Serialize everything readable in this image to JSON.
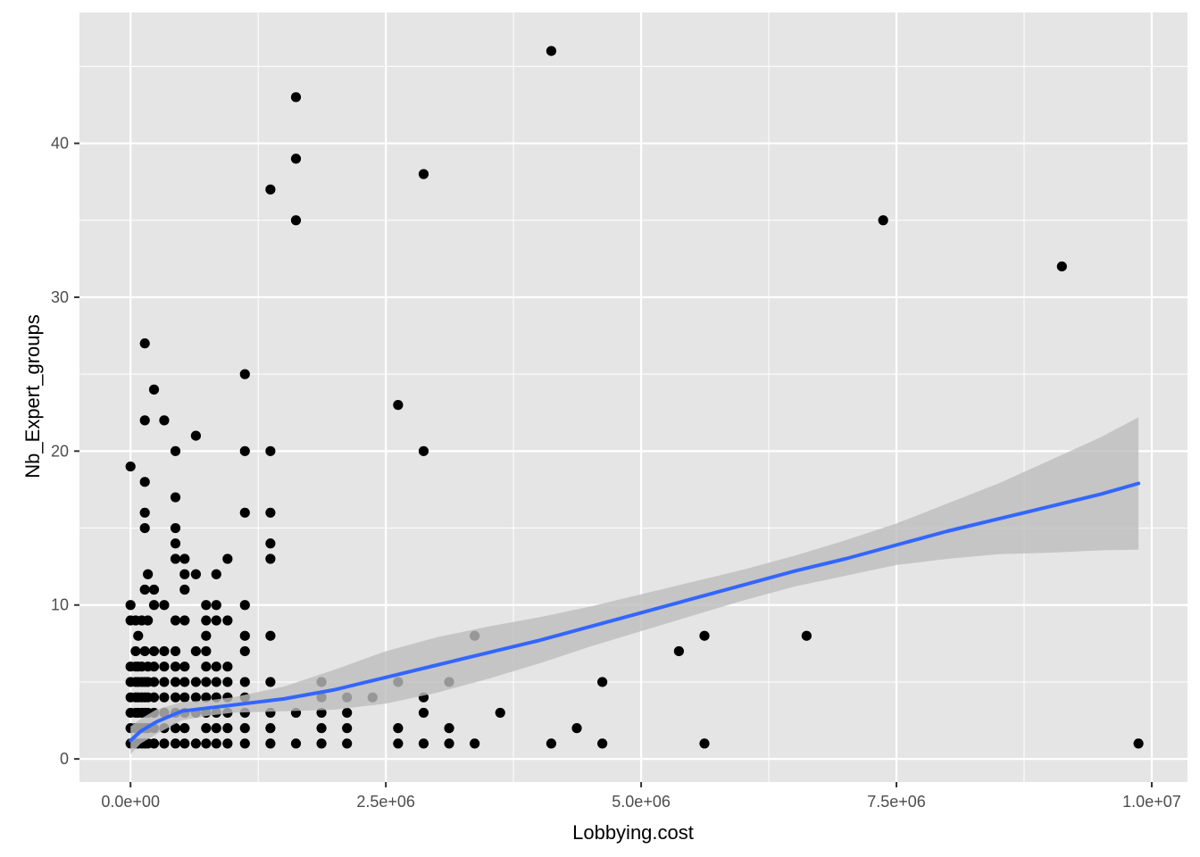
{
  "chart_data": {
    "type": "scatter",
    "xlabel": "Lobbying.cost",
    "ylabel": "Nb_Expert_groups",
    "xlim": [
      -500000,
      10350000
    ],
    "ylim": [
      -1.5,
      48.5
    ],
    "x_ticks": [
      0,
      2500000,
      5000000,
      7500000,
      10000000
    ],
    "x_tick_labels": [
      "0.0e+00",
      "2.5e+06",
      "5.0e+06",
      "7.5e+06",
      "1.0e+07"
    ],
    "y_ticks": [
      0,
      10,
      20,
      30,
      40
    ],
    "y_tick_labels": [
      "0",
      "10",
      "20",
      "30",
      "40"
    ],
    "grid": true,
    "colors": {
      "panel": "#e5e5e5",
      "grid": "#ffffff",
      "points": "#000000",
      "smooth_line": "#3366ff",
      "confidence_band": "#bdbdbd"
    },
    "points": [
      [
        0,
        1
      ],
      [
        0,
        2
      ],
      [
        0,
        3
      ],
      [
        0,
        4
      ],
      [
        0,
        5
      ],
      [
        0,
        6
      ],
      [
        0,
        9
      ],
      [
        0,
        10
      ],
      [
        0,
        19
      ],
      [
        50000,
        1
      ],
      [
        50000,
        2
      ],
      [
        50000,
        3
      ],
      [
        50000,
        4
      ],
      [
        50000,
        5
      ],
      [
        50000,
        6
      ],
      [
        50000,
        7
      ],
      [
        50000,
        9
      ],
      [
        75000,
        1
      ],
      [
        75000,
        2
      ],
      [
        75000,
        3
      ],
      [
        75000,
        4
      ],
      [
        75000,
        5
      ],
      [
        75000,
        6
      ],
      [
        75000,
        8
      ],
      [
        110000,
        1
      ],
      [
        110000,
        2
      ],
      [
        110000,
        3
      ],
      [
        110000,
        4
      ],
      [
        110000,
        5
      ],
      [
        110000,
        6
      ],
      [
        110000,
        9
      ],
      [
        140000,
        1
      ],
      [
        140000,
        2
      ],
      [
        140000,
        3
      ],
      [
        140000,
        4
      ],
      [
        140000,
        5
      ],
      [
        140000,
        7
      ],
      [
        140000,
        11
      ],
      [
        140000,
        15
      ],
      [
        140000,
        16
      ],
      [
        140000,
        18
      ],
      [
        140000,
        22
      ],
      [
        140000,
        27
      ],
      [
        170000,
        1
      ],
      [
        170000,
        2
      ],
      [
        170000,
        3
      ],
      [
        170000,
        4
      ],
      [
        170000,
        5
      ],
      [
        170000,
        6
      ],
      [
        170000,
        9
      ],
      [
        170000,
        12
      ],
      [
        230000,
        1
      ],
      [
        230000,
        2
      ],
      [
        230000,
        3
      ],
      [
        230000,
        4
      ],
      [
        230000,
        5
      ],
      [
        230000,
        6
      ],
      [
        230000,
        7
      ],
      [
        230000,
        10
      ],
      [
        230000,
        11
      ],
      [
        230000,
        24
      ],
      [
        330000,
        1
      ],
      [
        330000,
        2
      ],
      [
        330000,
        3
      ],
      [
        330000,
        4
      ],
      [
        330000,
        5
      ],
      [
        330000,
        6
      ],
      [
        330000,
        7
      ],
      [
        330000,
        10
      ],
      [
        330000,
        22
      ],
      [
        440000,
        1
      ],
      [
        440000,
        2
      ],
      [
        440000,
        3
      ],
      [
        440000,
        4
      ],
      [
        440000,
        5
      ],
      [
        440000,
        6
      ],
      [
        440000,
        7
      ],
      [
        440000,
        9
      ],
      [
        440000,
        13
      ],
      [
        440000,
        14
      ],
      [
        440000,
        15
      ],
      [
        440000,
        17
      ],
      [
        440000,
        20
      ],
      [
        530000,
        1
      ],
      [
        530000,
        2
      ],
      [
        530000,
        3
      ],
      [
        530000,
        4
      ],
      [
        530000,
        5
      ],
      [
        530000,
        6
      ],
      [
        530000,
        9
      ],
      [
        530000,
        11
      ],
      [
        530000,
        12
      ],
      [
        530000,
        13
      ],
      [
        640000,
        1
      ],
      [
        640000,
        3
      ],
      [
        640000,
        4
      ],
      [
        640000,
        5
      ],
      [
        640000,
        7
      ],
      [
        640000,
        12
      ],
      [
        640000,
        21
      ],
      [
        740000,
        1
      ],
      [
        740000,
        2
      ],
      [
        740000,
        3
      ],
      [
        740000,
        4
      ],
      [
        740000,
        5
      ],
      [
        740000,
        6
      ],
      [
        740000,
        7
      ],
      [
        740000,
        8
      ],
      [
        740000,
        9
      ],
      [
        740000,
        10
      ],
      [
        840000,
        1
      ],
      [
        840000,
        2
      ],
      [
        840000,
        3
      ],
      [
        840000,
        4
      ],
      [
        840000,
        5
      ],
      [
        840000,
        6
      ],
      [
        840000,
        9
      ],
      [
        840000,
        10
      ],
      [
        840000,
        12
      ],
      [
        950000,
        1
      ],
      [
        950000,
        2
      ],
      [
        950000,
        3
      ],
      [
        950000,
        4
      ],
      [
        950000,
        5
      ],
      [
        950000,
        6
      ],
      [
        950000,
        9
      ],
      [
        950000,
        13
      ],
      [
        1120000,
        1
      ],
      [
        1120000,
        2
      ],
      [
        1120000,
        3
      ],
      [
        1120000,
        4
      ],
      [
        1120000,
        5
      ],
      [
        1120000,
        7
      ],
      [
        1120000,
        8
      ],
      [
        1120000,
        10
      ],
      [
        1120000,
        16
      ],
      [
        1120000,
        20
      ],
      [
        1120000,
        25
      ],
      [
        1370000,
        1
      ],
      [
        1370000,
        2
      ],
      [
        1370000,
        3
      ],
      [
        1370000,
        5
      ],
      [
        1370000,
        8
      ],
      [
        1370000,
        13
      ],
      [
        1370000,
        14
      ],
      [
        1370000,
        16
      ],
      [
        1370000,
        20
      ],
      [
        1370000,
        37
      ],
      [
        1620000,
        1
      ],
      [
        1620000,
        3
      ],
      [
        1620000,
        35
      ],
      [
        1620000,
        39
      ],
      [
        1620000,
        43
      ],
      [
        1870000,
        1
      ],
      [
        1870000,
        2
      ],
      [
        1870000,
        3
      ],
      [
        1870000,
        4
      ],
      [
        1870000,
        5
      ],
      [
        2120000,
        1
      ],
      [
        2120000,
        2
      ],
      [
        2120000,
        3
      ],
      [
        2120000,
        4
      ],
      [
        2370000,
        4
      ],
      [
        2620000,
        1
      ],
      [
        2620000,
        2
      ],
      [
        2620000,
        5
      ],
      [
        2620000,
        23
      ],
      [
        2870000,
        1
      ],
      [
        2870000,
        3
      ],
      [
        2870000,
        4
      ],
      [
        2870000,
        20
      ],
      [
        2870000,
        38
      ],
      [
        3120000,
        1
      ],
      [
        3120000,
        2
      ],
      [
        3120000,
        5
      ],
      [
        3370000,
        1
      ],
      [
        3370000,
        8
      ],
      [
        3620000,
        3
      ],
      [
        4120000,
        1
      ],
      [
        4120000,
        46
      ],
      [
        4370000,
        2
      ],
      [
        4620000,
        1
      ],
      [
        4620000,
        5
      ],
      [
        5370000,
        7
      ],
      [
        5620000,
        1
      ],
      [
        5620000,
        8
      ],
      [
        6620000,
        8
      ],
      [
        7370000,
        35
      ],
      [
        9120000,
        32
      ],
      [
        9870000,
        1
      ]
    ],
    "smooth": {
      "x": [
        0,
        100000,
        250000,
        500000,
        750000,
        1000000,
        1500000,
        2000000,
        2500000,
        3000000,
        3500000,
        4000000,
        4500000,
        5000000,
        5500000,
        6000000,
        6500000,
        7000000,
        7500000,
        8000000,
        8500000,
        9000000,
        9500000,
        9870000
      ],
      "y": [
        1.2,
        1.8,
        2.4,
        3.1,
        3.3,
        3.5,
        3.9,
        4.5,
        5.3,
        6.1,
        6.9,
        7.7,
        8.6,
        9.5,
        10.4,
        11.3,
        12.2,
        13.0,
        13.9,
        14.8,
        15.6,
        16.4,
        17.2,
        17.9
      ],
      "lower": [
        0.3,
        1.0,
        1.6,
        2.5,
        2.8,
        3.0,
        3.1,
        3.2,
        3.6,
        4.3,
        5.2,
        6.2,
        7.3,
        8.3,
        9.3,
        10.3,
        11.2,
        11.9,
        12.6,
        13.0,
        13.3,
        13.4,
        13.55,
        13.6
      ],
      "upper": [
        2.1,
        2.6,
        3.2,
        3.7,
        3.8,
        4.0,
        4.7,
        5.8,
        7.0,
        7.9,
        8.6,
        9.2,
        9.9,
        10.7,
        11.5,
        12.3,
        13.2,
        14.2,
        15.3,
        16.6,
        17.9,
        19.4,
        20.9,
        22.2
      ]
    }
  }
}
